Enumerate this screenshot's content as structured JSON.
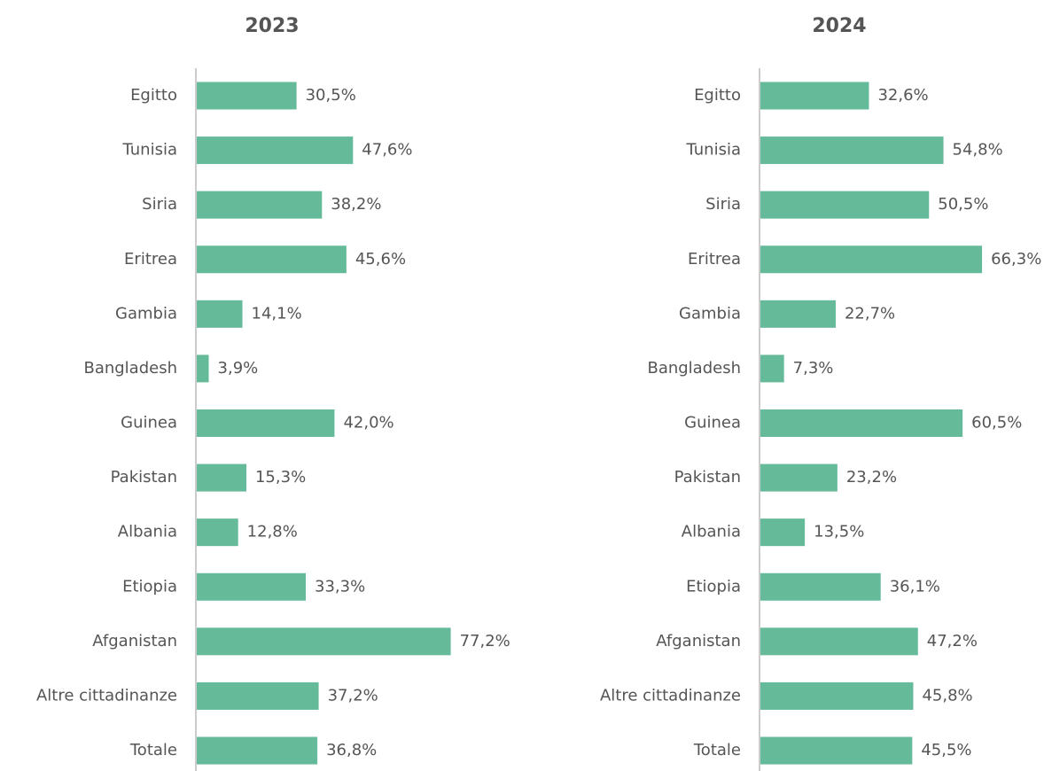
{
  "chart_data": [
    {
      "type": "barh",
      "title": "2023",
      "categories": [
        "Egitto",
        "Tunisia",
        "Siria",
        "Eritrea",
        "Gambia",
        "Bangladesh",
        "Guinea",
        "Pakistan",
        "Albania",
        "Etiopia",
        "Afganistan",
        "Altre cittadinanze",
        "Totale"
      ],
      "values": [
        30.5,
        47.6,
        38.2,
        45.6,
        14.1,
        3.9,
        42.0,
        15.3,
        12.8,
        33.3,
        77.2,
        37.2,
        36.8
      ],
      "value_labels": [
        "30,5%",
        "47,6%",
        "38,2%",
        "45,6%",
        "14,1%",
        "3,9%",
        "42,0%",
        "15,3%",
        "12,8%",
        "33,3%",
        "77,2%",
        "37,2%",
        "36,8%"
      ],
      "color": "#65ba9a",
      "xlim": [
        0,
        80
      ]
    },
    {
      "type": "barh",
      "title": "2024",
      "categories": [
        "Egitto",
        "Tunisia",
        "Siria",
        "Eritrea",
        "Gambia",
        "Bangladesh",
        "Guinea",
        "Pakistan",
        "Albania",
        "Etiopia",
        "Afganistan",
        "Altre cittadinanze",
        "Totale"
      ],
      "values": [
        32.6,
        54.8,
        50.5,
        66.3,
        22.7,
        7.3,
        60.5,
        23.2,
        13.5,
        36.1,
        47.2,
        45.8,
        45.5
      ],
      "value_labels": [
        "32,6%",
        "54,8%",
        "50,5%",
        "66,3%",
        "22,7%",
        "7,3%",
        "60,5%",
        "23,2%",
        "13,5%",
        "36,1%",
        "47,2%",
        "45,8%",
        "45,5%"
      ],
      "color": "#65ba9a",
      "xlim": [
        0,
        80
      ]
    }
  ]
}
